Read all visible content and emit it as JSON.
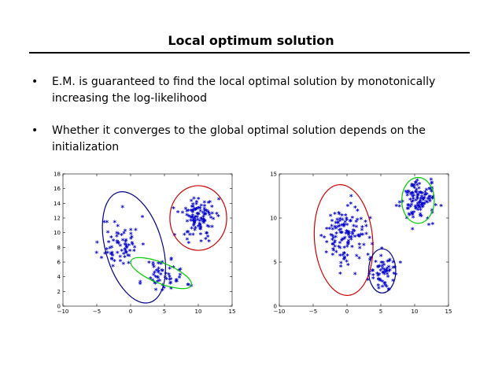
{
  "slide": {
    "title": "Local optimum solution",
    "bullets": [
      "E.M. is guaranteed to find the local optimal solution by monotonically increasing the log-likelihood",
      "Whether it converges to the global optimal solution depends on the initialization"
    ]
  },
  "chart_data": [
    {
      "type": "scatter",
      "title": "",
      "xlabel": "",
      "ylabel": "",
      "xlim": [
        -10,
        15
      ],
      "ylim": [
        0,
        18
      ],
      "xticks": [
        -10,
        -5,
        0,
        5,
        10,
        15
      ],
      "yticks": [
        0,
        2,
        4,
        6,
        8,
        10,
        12,
        14,
        16,
        18
      ],
      "marker": "*",
      "marker_color": "#0000cc",
      "clusters": [
        {
          "center": [
            -1.5,
            8.5
          ],
          "spread": [
            1.4,
            1.8
          ],
          "count": 70
        },
        {
          "center": [
            5.0,
            4.0
          ],
          "spread": [
            1.6,
            1.2
          ],
          "count": 55
        },
        {
          "center": [
            10.0,
            12.0
          ],
          "spread": [
            1.3,
            1.4
          ],
          "count": 110
        }
      ],
      "ellipses": [
        {
          "color": "#00008b",
          "center": [
            0.5,
            8.0
          ],
          "radii": [
            4.2,
            7.8
          ],
          "angle_deg": 16
        },
        {
          "color": "#00cc00",
          "center": [
            4.5,
            4.5
          ],
          "radii": [
            4.8,
            1.4
          ],
          "angle_deg": -22
        },
        {
          "color": "#cc0000",
          "center": [
            10.0,
            12.0
          ],
          "radii": [
            4.2,
            4.4
          ],
          "angle_deg": 0
        }
      ]
    },
    {
      "type": "scatter",
      "title": "",
      "xlabel": "",
      "ylabel": "",
      "xlim": [
        -10,
        15
      ],
      "ylim": [
        0,
        15
      ],
      "xticks": [
        -10,
        -5,
        0,
        5,
        10,
        15
      ],
      "yticks": [
        0,
        5,
        10,
        15
      ],
      "marker": "*",
      "marker_color": "#0000cc",
      "clusters": [
        {
          "center": [
            -0.5,
            8.0
          ],
          "spread": [
            1.6,
            1.7
          ],
          "count": 130
        },
        {
          "center": [
            5.0,
            4.0
          ],
          "spread": [
            1.1,
            1.0
          ],
          "count": 60
        },
        {
          "center": [
            10.5,
            12.0
          ],
          "spread": [
            1.2,
            1.1
          ],
          "count": 120
        }
      ],
      "ellipses": [
        {
          "color": "#cc0000",
          "center": [
            -0.5,
            7.5
          ],
          "radii": [
            4.3,
            6.3
          ],
          "angle_deg": 5
        },
        {
          "color": "#00008b",
          "center": [
            5.2,
            4.0
          ],
          "radii": [
            2.0,
            2.5
          ],
          "angle_deg": 0
        },
        {
          "color": "#00cc00",
          "center": [
            10.5,
            12.0
          ],
          "radii": [
            2.4,
            2.6
          ],
          "angle_deg": 0
        }
      ]
    }
  ]
}
